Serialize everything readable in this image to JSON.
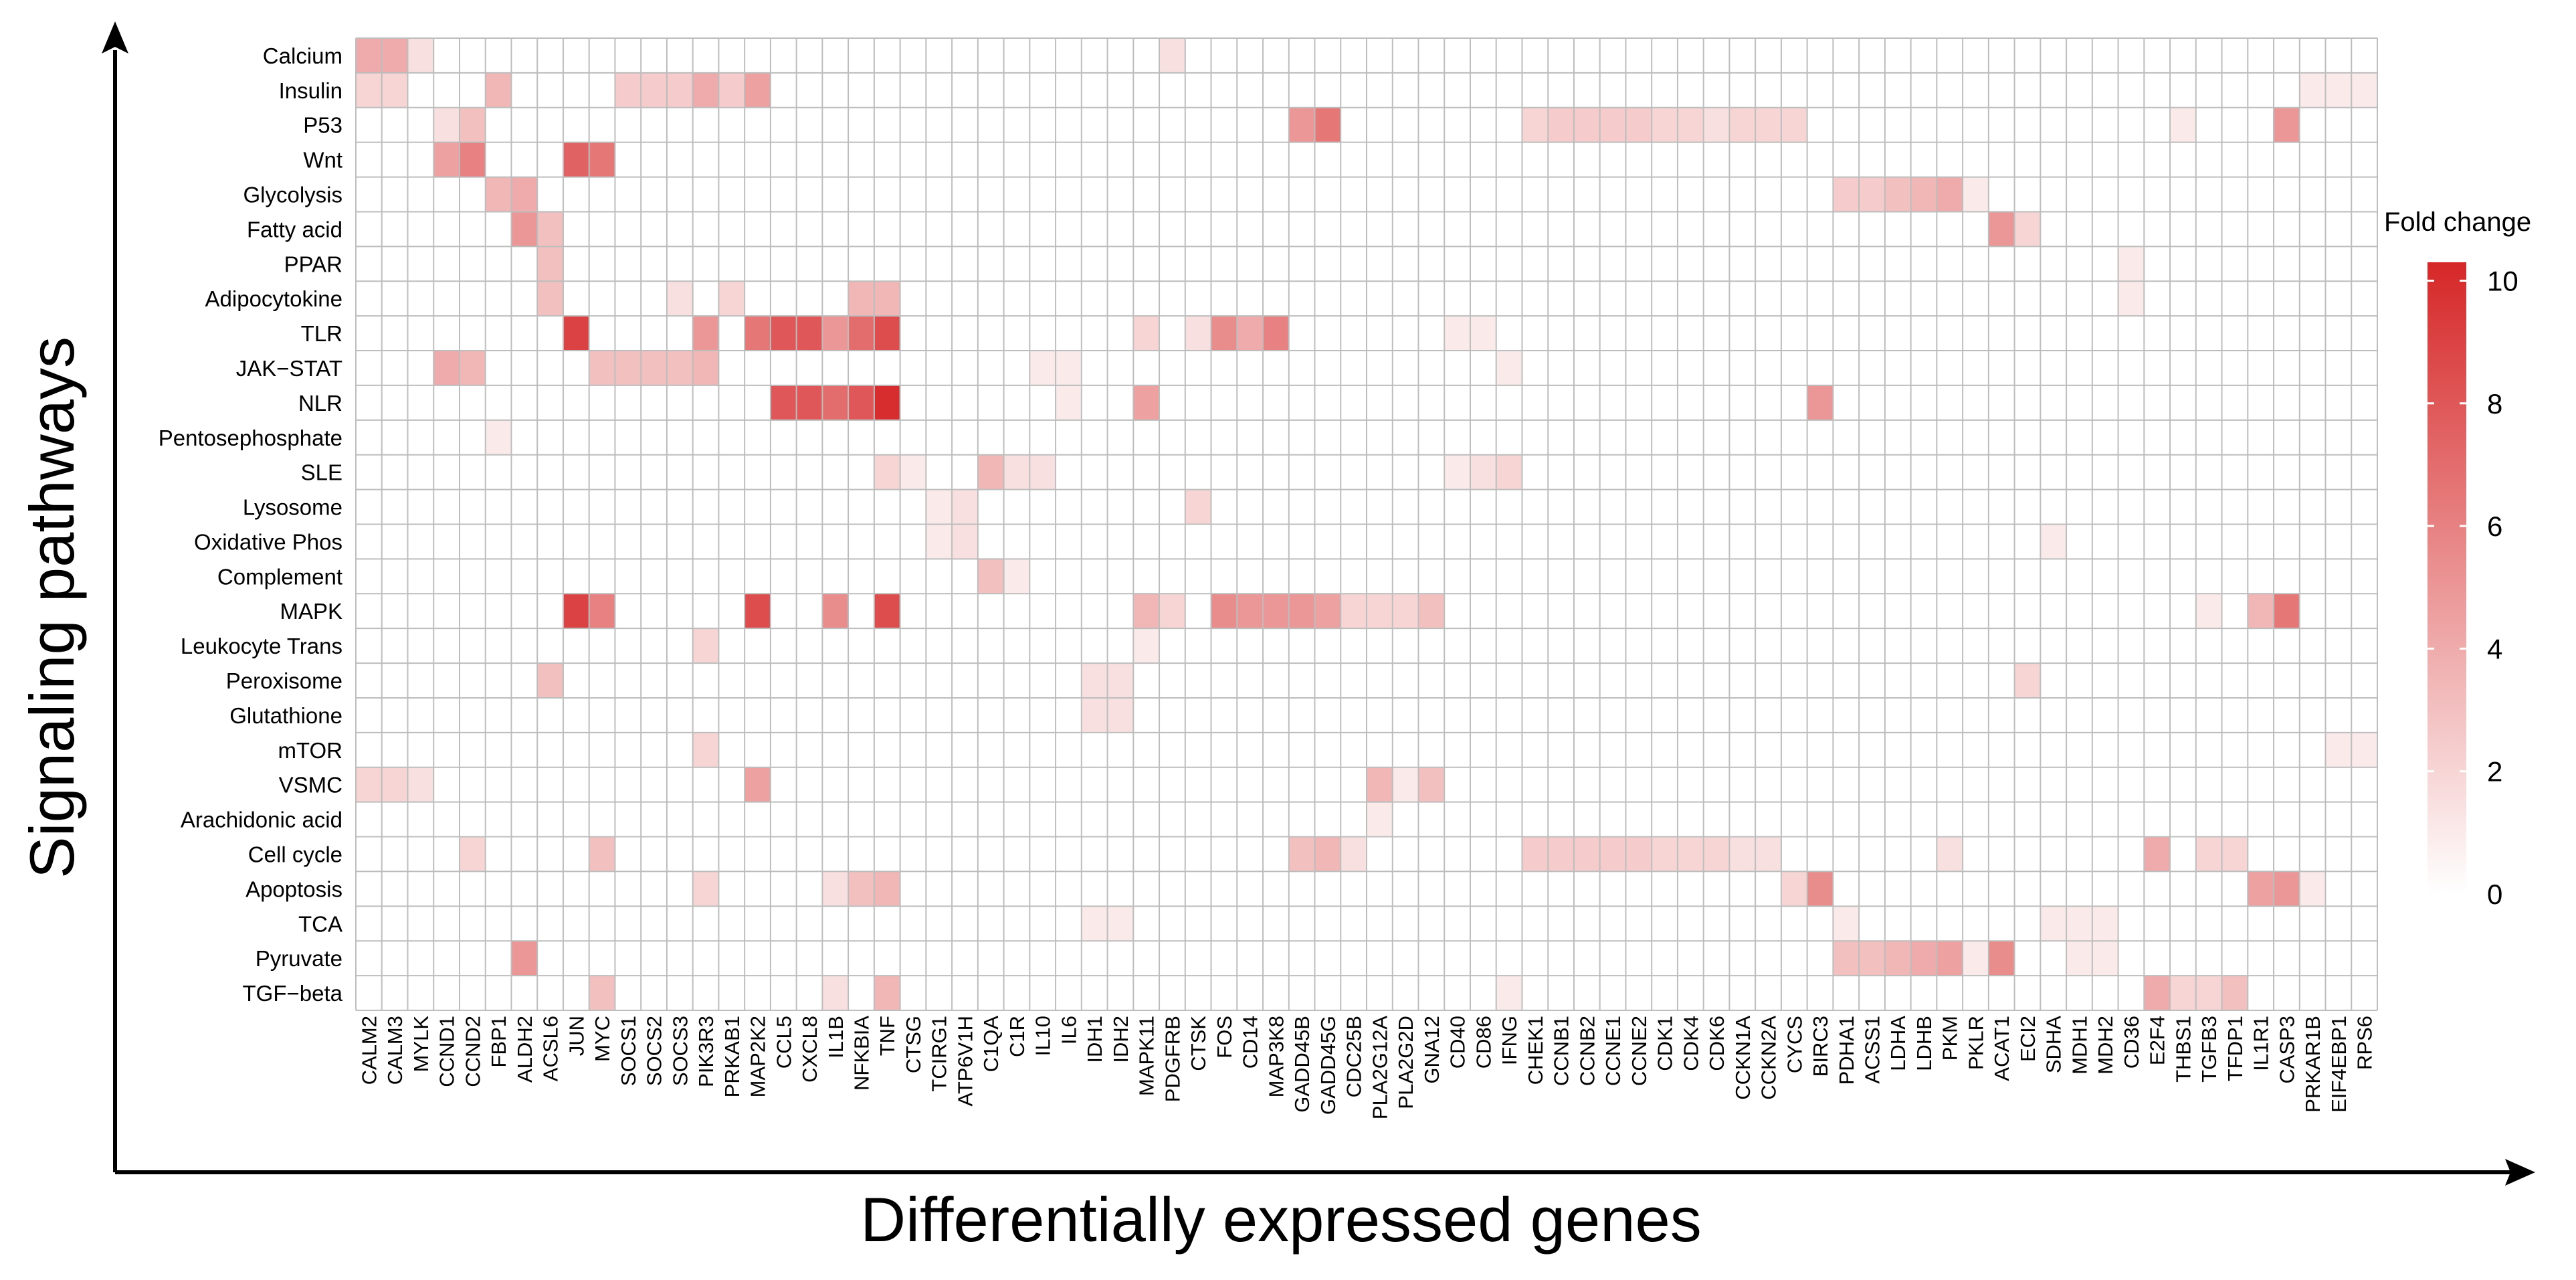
{
  "chart_data": {
    "type": "heatmap",
    "title": "",
    "xlabel": "Differentially expressed genes",
    "ylabel": "Signaling pathways",
    "genes": [
      "CALM2",
      "CALM3",
      "MYLK",
      "CCND1",
      "CCND2",
      "FBP1",
      "ALDH2",
      "ACSL6",
      "JUN",
      "MYC",
      "SOCS1",
      "SOCS2",
      "SOCS3",
      "PIK3R3",
      "PRKAB1",
      "MAP2K2",
      "CCL5",
      "CXCL8",
      "IL1B",
      "NFKBIA",
      "TNF",
      "CTSG",
      "TCIRG1",
      "ATP6V1H",
      "C1QA",
      "C1R",
      "IL10",
      "IL6",
      "IDH1",
      "IDH2",
      "MAPK11",
      "PDGFRB",
      "CTSK",
      "FOS",
      "CD14",
      "MAP3K8",
      "GADD45B",
      "GADD45G",
      "CDC25B",
      "PLA2G12A",
      "PLA2G2D",
      "GNA12",
      "CD40",
      "CD86",
      "IFNG",
      "CHEK1",
      "CCNB1",
      "CCNB2",
      "CCNE1",
      "CCNE2",
      "CDK1",
      "CDK4",
      "CDK6",
      "CCKN1A",
      "CCKN2A",
      "CYCS",
      "BIRC3",
      "PDHA1",
      "ACSS1",
      "LDHA",
      "LDHB",
      "PKM",
      "PKLR",
      "ACAT1",
      "ECI2",
      "SDHA",
      "MDH1",
      "MDH2",
      "CD36",
      "E2F4",
      "THBS1",
      "TGFB3",
      "TFDP1",
      "IL1R1",
      "CASP3",
      "PRKAR1B",
      "EIF4EBP1",
      "RPS6"
    ],
    "pathways": [
      "Calcium",
      "Insulin",
      "P53",
      "Wnt",
      "Glycolysis",
      "Fatty acid",
      "PPAR",
      "Adipocytokine",
      "TLR",
      "JAK−STAT",
      "NLR",
      "Pentosephosphate",
      "SLE",
      "Lysosome",
      "Oxidative Phos",
      "Complement",
      "MAPK",
      "Leukocyte Trans",
      "Peroxisome",
      "Glutathione",
      "mTOR",
      "VSMC",
      "Arachidonic acid",
      "Cell cycle",
      "Apoptosis",
      "TCA",
      "Pyruvate",
      "TGF−beta"
    ],
    "values": {
      "Calcium": {
        "CALM2": 4,
        "CALM3": 4,
        "MYLK": 1.5,
        "PDGFRB": 1.5
      },
      "Insulin": {
        "CALM2": 2,
        "CALM3": 2,
        "FBP1": 3.5,
        "SOCS1": 2.5,
        "SOCS2": 2.5,
        "SOCS3": 2.5,
        "PIK3R3": 4,
        "PRKAB1": 2.5,
        "MAP2K2": 4.5,
        "PRKAR1B": 1,
        "EIF4EBP1": 1,
        "RPS6": 1
      },
      "P53": {
        "CCND1": 1.5,
        "CCND2": 3,
        "GADD45B": 5,
        "GADD45G": 6.5,
        "CHEK1": 2,
        "CCNB1": 2.5,
        "CCNB2": 2.5,
        "CCNE1": 2.5,
        "CCNE2": 2.5,
        "CDK1": 2,
        "CDK4": 2,
        "CDK6": 1.5,
        "CCKN1A": 2,
        "CCKN2A": 2,
        "CYCS": 2,
        "THBS1": 1,
        "CASP3": 5
      },
      "Wnt": {
        "CCND1": 4.5,
        "CCND2": 6,
        "JUN": 7.5,
        "MYC": 6.5
      },
      "Glycolysis": {
        "FBP1": 3.5,
        "ALDH2": 4,
        "PDHA1": 2.5,
        "ACSS1": 2.5,
        "LDHA": 3,
        "LDHB": 3.5,
        "PKM": 4,
        "PKLR": 1
      },
      "Fatty acid": {
        "ALDH2": 5,
        "ACSL6": 3,
        "ACAT1": 5,
        "ECI2": 2
      },
      "PPAR": {
        "ACSL6": 3,
        "CD36": 1
      },
      "Adipocytokine": {
        "ACSL6": 3,
        "SOCS3": 1.5,
        "PRKAB1": 2,
        "NFKBIA": 3.5,
        "TNF": 3.5,
        "CD36": 1
      },
      "TLR": {
        "JUN": 9,
        "PIK3R3": 5,
        "MAP2K2": 6.5,
        "CCL5": 8,
        "CXCL8": 8,
        "IL1B": 5,
        "NFKBIA": 7,
        "TNF": 8.5,
        "MAPK11": 2,
        "CTSK": 1.5,
        "FOS": 5.5,
        "CD14": 4,
        "MAP3K8": 6,
        "CD40": 1,
        "CD86": 1
      },
      "JAK−STAT": {
        "CCND1": 4,
        "CCND2": 3.5,
        "MYC": 3,
        "SOCS1": 3,
        "SOCS2": 3,
        "SOCS3": 3,
        "PIK3R3": 3.5,
        "IL10": 1,
        "IL6": 1,
        "IFNG": 1
      },
      "NLR": {
        "CCL5": 8,
        "CXCL8": 8,
        "IL1B": 7,
        "NFKBIA": 8,
        "TNF": 10,
        "IL6": 1,
        "MAPK11": 4.5,
        "BIRC3": 5
      },
      "Pentosephosphate": {
        "FBP1": 1
      },
      "SLE": {
        "TNF": 2,
        "CTSG": 1,
        "C1QA": 3.5,
        "C1R": 1.5,
        "IL10": 1.5,
        "CD40": 1,
        "CD86": 1.5,
        "IFNG": 2
      },
      "Lysosome": {
        "TCIRG1": 1,
        "ATP6V1H": 1.5,
        "CTSK": 2
      },
      "Oxidative Phos": {
        "TCIRG1": 1,
        "ATP6V1H": 1.5,
        "SDHA": 1
      },
      "Complement": {
        "C1QA": 3,
        "C1R": 1
      },
      "MAPK": {
        "JUN": 9,
        "MYC": 6,
        "MAP2K2": 8.5,
        "IL1B": 5.5,
        "TNF": 8.5,
        "MAPK11": 3.5,
        "PDGFRB": 2,
        "FOS": 5.5,
        "CD14": 5,
        "MAP3K8": 5,
        "GADD45B": 5,
        "GADD45G": 4.5,
        "CDC25B": 2,
        "PLA2G12A": 2,
        "PLA2G2D": 2,
        "GNA12": 3,
        "TGFB3": 1,
        "IL1R1": 3.5,
        "CASP3": 6.5
      },
      "Leukocyte Trans": {
        "PIK3R3": 2,
        "MAPK11": 1
      },
      "Peroxisome": {
        "ACSL6": 3,
        "IDH1": 1.5,
        "IDH2": 1.5,
        "ECI2": 2
      },
      "Glutathione": {
        "IDH1": 1.5,
        "IDH2": 1.5
      },
      "mTOR": {
        "PIK3R3": 2,
        "EIF4EBP1": 1,
        "RPS6": 1
      },
      "VSMC": {
        "CALM2": 2,
        "CALM3": 2,
        "MYLK": 1.5,
        "MAP2K2": 4.5,
        "PLA2G12A": 3.5,
        "PLA2G2D": 1,
        "GNA12": 3
      },
      "Arachidonic acid": {
        "PLA2G12A": 1
      },
      "Cell cycle": {
        "CCND2": 2,
        "MYC": 3,
        "GADD45B": 3,
        "GADD45G": 3.5,
        "CDC25B": 1.5,
        "CHEK1": 2.5,
        "CCNB1": 2.5,
        "CCNB2": 2.5,
        "CCNE1": 2.5,
        "CCNE2": 2.5,
        "CDK1": 2,
        "CDK4": 2,
        "CDK6": 2,
        "CCKN1A": 1.5,
        "CCKN2A": 1.5,
        "PKM": 1.5,
        "E2F4": 4,
        "TGFB3": 2,
        "TFDP1": 2
      },
      "Apoptosis": {
        "PIK3R3": 2,
        "IL1B": 1.5,
        "NFKBIA": 3,
        "TNF": 3.5,
        "CYCS": 2,
        "BIRC3": 5.5,
        "IL1R1": 4.5,
        "CASP3": 5,
        "PRKAR1B": 1
      },
      "TCA": {
        "IDH1": 1,
        "IDH2": 1,
        "PDHA1": 1,
        "SDHA": 1,
        "MDH1": 1,
        "MDH2": 1
      },
      "Pyruvate": {
        "ALDH2": 5,
        "PDHA1": 3,
        "ACSS1": 3,
        "LDHA": 3.5,
        "LDHB": 4,
        "PKM": 4.5,
        "PKLR": 1,
        "ACAT1": 5.5,
        "MDH1": 1,
        "MDH2": 1
      },
      "TGF−beta": {
        "MYC": 3,
        "IL1B": 1.5,
        "TNF": 3.5,
        "IFNG": 1,
        "E2F4": 4,
        "THBS1": 2,
        "TGFB3": 2,
        "TFDP1": 3
      }
    },
    "colorbar": {
      "title": "Fold change",
      "range": [
        0,
        10.3
      ],
      "ticks": [
        0,
        2,
        4,
        6,
        8,
        10
      ],
      "low_color": "#FFFFFF",
      "high_color": "#D62728"
    },
    "grid": true
  }
}
